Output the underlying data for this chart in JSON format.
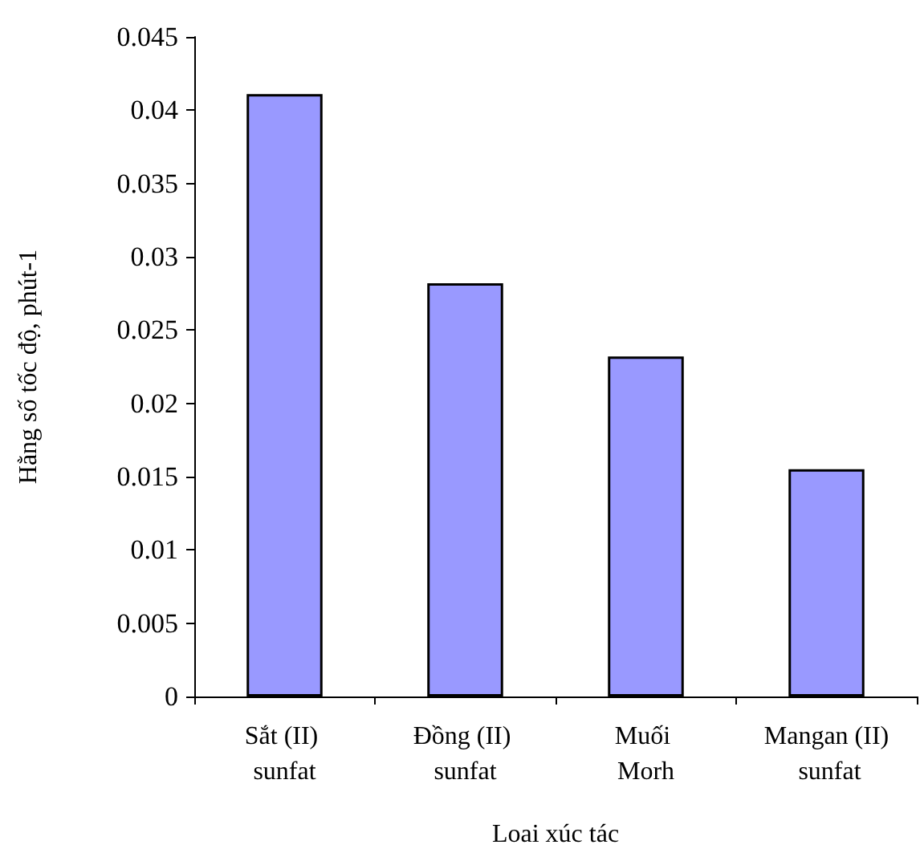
{
  "chart_data": {
    "type": "bar",
    "xlabel": "Loai xúc tác",
    "ylabel": "Hằng số tốc độ, phút-1",
    "categories": [
      "Sắt (II) sunfat",
      "Đồng (II) sunfat",
      "Muối Morh",
      "Mangan (II) sunfat"
    ],
    "values": [
      0.0411,
      0.0282,
      0.0232,
      0.0155
    ],
    "color": "#9999ff",
    "ylim": [
      0,
      0.045
    ],
    "yticks": [
      0,
      0.005,
      0.01,
      0.015,
      0.02,
      0.025,
      0.03,
      0.035,
      0.04,
      0.045
    ],
    "grid": false
  }
}
